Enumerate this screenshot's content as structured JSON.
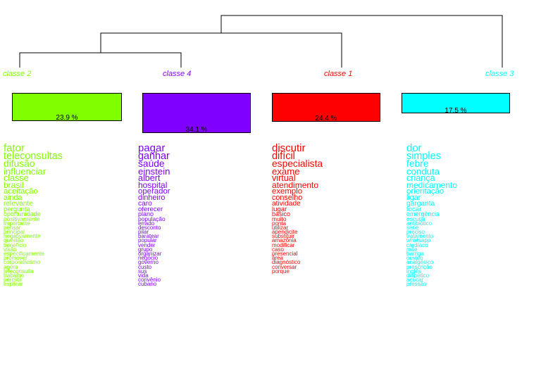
{
  "classes": [
    {
      "label": "classe  2",
      "percent": "23.9 %",
      "color": "#80ff00",
      "words": [
        "fator",
        "teleconsultas",
        "difusão",
        "influenciar",
        "classe",
        "brasil",
        "aceitação",
        "ainda",
        "relevante",
        "pergunta",
        "oportunidade",
        "positivamente",
        "importante",
        "pensar",
        "principal",
        "negativamente",
        "questão",
        "benefício",
        "visão",
        "especificamente",
        "promover",
        "corporativismo",
        "agora",
        "teleconsulta",
        "trabalho",
        "permitir",
        "explicar"
      ]
    },
    {
      "label": "classe  4",
      "percent": "34.1 %",
      "color": "#8000ff",
      "words": [
        "pagar",
        "ganhar",
        "saúde",
        "einstein",
        "albert",
        "hospital",
        "operador",
        "dinheiro",
        "caro",
        "oferecer",
        "plano",
        "população",
        "errado",
        "desconto",
        "pilar",
        "baratear",
        "popular",
        "vender",
        "grupo",
        "organizar",
        "negócio",
        "governo",
        "custo",
        "sus",
        "vida",
        "convênio",
        "cubano"
      ]
    },
    {
      "label": "classe  1",
      "percent": "24.4 %",
      "color": "#ff0000",
      "words": [
        "discutir",
        "difícil",
        "especialista",
        "exame",
        "virtual",
        "atendimento",
        "exemplo",
        "conselho",
        "atividade",
        "lugar",
        "básico",
        "muito",
        "ponta",
        "utilizar",
        "apendicite",
        "substituir",
        "amazônia",
        "modificar",
        "caso",
        "presencial",
        "área",
        "diagnóstico",
        "conversar",
        "porque"
      ]
    },
    {
      "label": "classe  3",
      "percent": "17.5 %",
      "color": "#00ffff",
      "words": [
        "dor",
        "simples",
        "febre",
        "conduta",
        "criança",
        "medicamento",
        "orientação",
        "ligar",
        "garganta",
        "tocar",
        "emergência",
        "escutar",
        "antibiótico",
        "série",
        "preciso",
        "tratamento",
        "whatsapp",
        "cardíaco",
        "mãe",
        "barriga",
        "ouvido",
        "analgésico",
        "prescrição",
        "inglês",
        "diabético",
        "açúcar",
        "pressão"
      ]
    }
  ]
}
